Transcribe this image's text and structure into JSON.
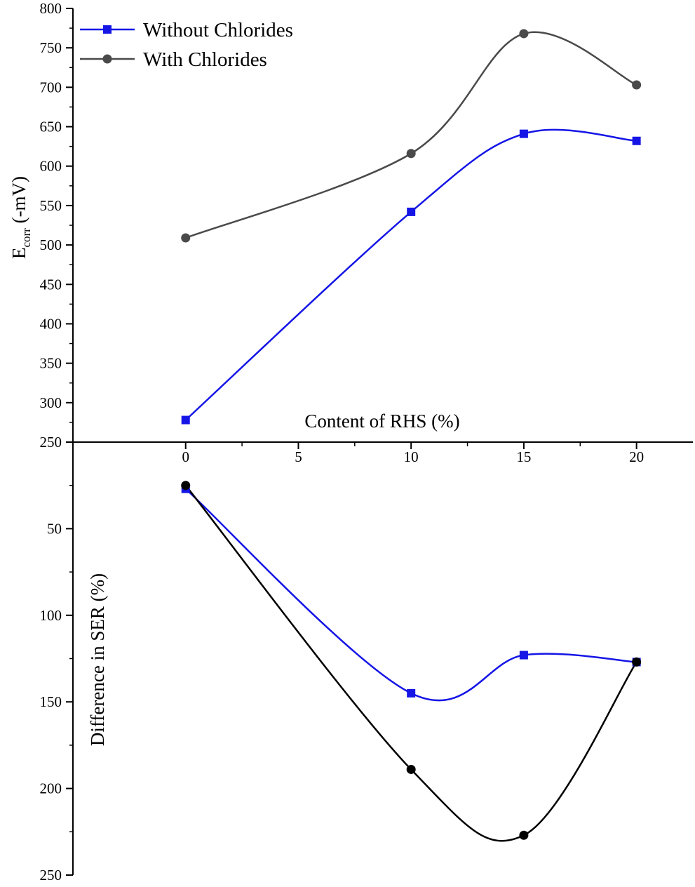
{
  "chart_data": [
    {
      "type": "line",
      "panel": "top",
      "xlabel": "Content of RHS (%)",
      "ylabel_main": "E",
      "ylabel_sub": "corr",
      "ylabel_rest": " (-mV)",
      "xlim": [
        -5,
        22.5
      ],
      "ylim": [
        250,
        800
      ],
      "y_ticks": [
        250,
        300,
        350,
        400,
        450,
        500,
        550,
        600,
        650,
        700,
        750,
        800
      ],
      "x_ticks": [
        0,
        5,
        10,
        15,
        20
      ],
      "legend_position": "top-left",
      "series": [
        {
          "name": "Without Chlorides",
          "color": "#1515e6",
          "marker": "square",
          "x": [
            0,
            10,
            15,
            20
          ],
          "y": [
            278,
            542,
            641,
            632
          ]
        },
        {
          "name": "With Chlorides",
          "color": "#4a4a4a",
          "marker": "circle",
          "x": [
            0,
            10,
            15,
            20
          ],
          "y": [
            509,
            616,
            768,
            703
          ]
        }
      ]
    },
    {
      "type": "line",
      "panel": "bottom",
      "ylabel": "Difference in SER (%)",
      "y_inverted": true,
      "ylim": [
        0,
        250
      ],
      "y_ticks": [
        50,
        100,
        150,
        200,
        250
      ],
      "series": [
        {
          "name": "Without Chlorides",
          "color": "#1515e6",
          "marker": "square",
          "x": [
            0,
            10,
            15,
            20
          ],
          "y": [
            27,
            145,
            123,
            127
          ]
        },
        {
          "name": "With Chlorides",
          "color": "#000000",
          "marker": "circle",
          "x": [
            0,
            10,
            15,
            20
          ],
          "y": [
            25,
            189,
            227,
            127
          ]
        }
      ]
    }
  ]
}
